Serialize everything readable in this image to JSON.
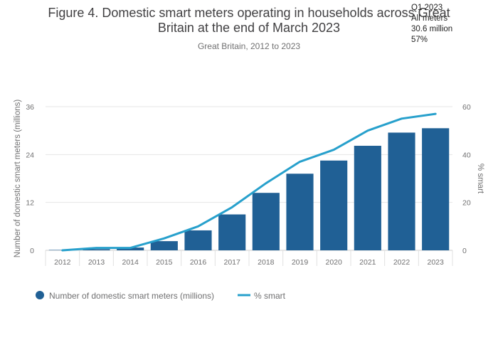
{
  "chart_data": {
    "type": "bar",
    "title_lines": [
      "Figure 4. Domestic smart meters operating in households across Great",
      "Britain at the end of March 2023"
    ],
    "subtitle": "Great Britain, 2012 to 2023",
    "categories": [
      "2012",
      "2013",
      "2014",
      "2015",
      "2016",
      "2017",
      "2018",
      "2019",
      "2020",
      "2021",
      "2022",
      "2023"
    ],
    "series": [
      {
        "name": "Number of domestic smart meters (millions)",
        "type": "bar",
        "axis": "left",
        "color": "#206095",
        "values": [
          0.1,
          0.3,
          0.7,
          2.3,
          5.0,
          9.0,
          14.4,
          19.2,
          22.5,
          26.2,
          29.5,
          30.6
        ]
      },
      {
        "name": "% smart",
        "type": "line",
        "axis": "right",
        "color": "#27a0cc",
        "values": [
          0,
          1,
          1,
          5,
          10,
          18,
          28,
          37,
          42,
          50,
          55,
          57
        ]
      }
    ],
    "ylabel": "Number of domestic smart meters (millions)",
    "ylim": [
      0,
      36
    ],
    "yticks": [
      0,
      12,
      24,
      36
    ],
    "y2label": "% smart",
    "y2lim": [
      0,
      60
    ],
    "y2ticks": [
      0,
      20,
      40,
      60
    ],
    "grid": true,
    "legend_position": "bottom-left",
    "annotation_lines": [
      "Q1 2023",
      "All meters",
      "30.6 million",
      "57%"
    ]
  }
}
